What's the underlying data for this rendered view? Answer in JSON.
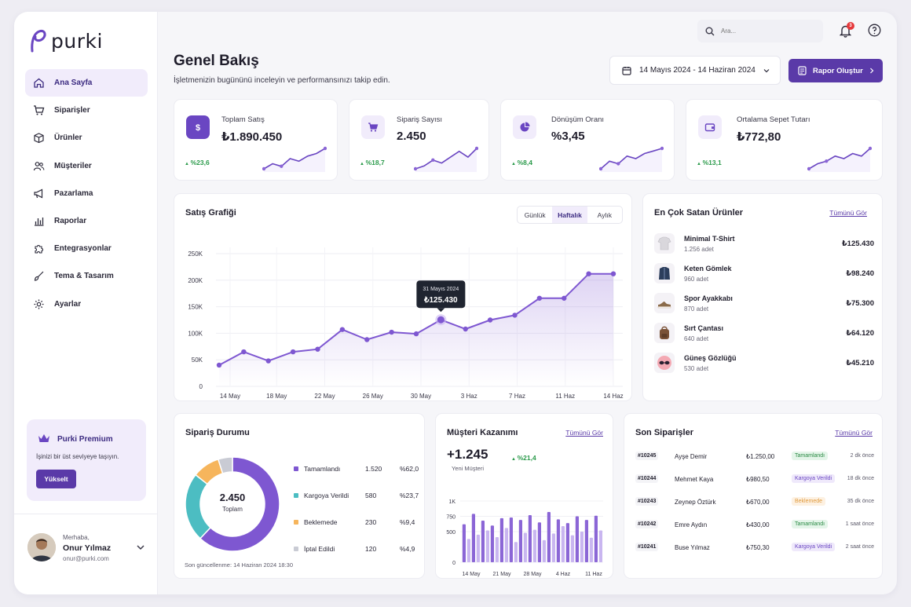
{
  "brand": {
    "name": "purki",
    "accent": "#5a3aa8"
  },
  "sidebar": {
    "items": [
      {
        "label": "Ana Sayfa",
        "icon": "home-icon",
        "active": true
      },
      {
        "label": "Siparişler",
        "icon": "cart-icon"
      },
      {
        "label": "Ürünler",
        "icon": "box-icon"
      },
      {
        "label": "Müşteriler",
        "icon": "users-icon"
      },
      {
        "label": "Pazarlama",
        "icon": "megaphone-icon"
      },
      {
        "label": "Raporlar",
        "icon": "bar-chart-icon"
      },
      {
        "label": "Entegrasyonlar",
        "icon": "puzzle-icon"
      },
      {
        "label": "Tema & Tasarım",
        "icon": "brush-icon"
      },
      {
        "label": "Ayarlar",
        "icon": "gear-icon"
      }
    ],
    "premium": {
      "title": "Purki Premium",
      "text": "İşinizi bir üst seviyeye taşıyın.",
      "button": "Yükselt"
    },
    "user": {
      "greeting": "Merhaba,",
      "name": "Onur Yılmaz",
      "email": "onur@purki.com"
    }
  },
  "header": {
    "search_placeholder": "Ara...",
    "notification_count": "3"
  },
  "page": {
    "title": "Genel Bakış",
    "subtitle": "İşletmenizin bugününü inceleyin ve performansınızı takip edin.",
    "date_range": "14 Mayıs 2024 - 14 Haziran 2024",
    "report_button": "Rapor Oluştur"
  },
  "kpis": [
    {
      "label": "Toplam Satış",
      "value": "₺1.890.450",
      "change": "%23,6",
      "icon": "dollar-icon",
      "spark": [
        2,
        4,
        3,
        6,
        5,
        7,
        8,
        10
      ]
    },
    {
      "label": "Sipariş Sayısı",
      "value": "2.450",
      "change": "%18,7",
      "icon": "cart-icon",
      "spark": [
        2,
        3,
        5,
        4,
        6,
        8,
        6,
        9
      ]
    },
    {
      "label": "Dönüşüm Oranı",
      "value": "%3,45",
      "change": "%8,4",
      "icon": "pie-icon",
      "spark": [
        1,
        4,
        3,
        6,
        5,
        7,
        8,
        9
      ]
    },
    {
      "label": "Ortalama Sepet Tutarı",
      "value": "₺772,80",
      "change": "%13,1",
      "icon": "wallet-icon",
      "spark": [
        1,
        3,
        4,
        6,
        5,
        7,
        6,
        9
      ]
    }
  ],
  "sales_chart": {
    "title": "Satış Grafiği",
    "tabs": [
      "Günlük",
      "Haftalık",
      "Aylık"
    ],
    "active_tab": "Haftalık",
    "tooltip": {
      "date": "31 Mayıs 2024",
      "value": "₺125.430"
    }
  },
  "top_products": {
    "title": "En Çok Satan Ürünler",
    "link": "Tümünü Gör",
    "items": [
      {
        "name": "Minimal T-Shirt",
        "qty": "1.256 adet",
        "value": "₺125.430",
        "icon": "tshirt-icon",
        "color": "#d9d7dc"
      },
      {
        "name": "Keten Gömlek",
        "qty": "960 adet",
        "value": "₺98.240",
        "icon": "shirt-icon",
        "color": "#2c3e5c"
      },
      {
        "name": "Spor Ayakkabı",
        "qty": "870 adet",
        "value": "₺75.300",
        "icon": "shoe-icon",
        "color": "#8a6b4a"
      },
      {
        "name": "Sırt Çantası",
        "qty": "640 adet",
        "value": "₺64.120",
        "icon": "backpack-icon",
        "color": "#7a5236"
      },
      {
        "name": "Güneş Gözlüğü",
        "qty": "530 adet",
        "value": "₺45.210",
        "icon": "sunglasses-icon",
        "color": "#f4a9b3"
      }
    ]
  },
  "order_status": {
    "title": "Sipariş Durumu",
    "total": "2.450",
    "total_label": "Toplam",
    "updated": "Son güncellenme: 14 Haziran 2024 18:30",
    "rows": [
      {
        "label": "Tamamlandı",
        "count": "1.520",
        "pct": "%62,0",
        "value": 62.0,
        "color": "#7e57d1"
      },
      {
        "label": "Kargoya Verildi",
        "count": "580",
        "pct": "%23,7",
        "value": 23.7,
        "color": "#4cbdc2"
      },
      {
        "label": "Beklemede",
        "count": "230",
        "pct": "%9,4",
        "value": 9.4,
        "color": "#f6b55c"
      },
      {
        "label": "İptal Edildi",
        "count": "120",
        "pct": "%4,9",
        "value": 4.9,
        "color": "#c9cbd4"
      }
    ]
  },
  "acquisition": {
    "title": "Müşteri Kazanımı",
    "link": "Tümünü Gör",
    "value": "+1.245",
    "sub": "Yeni Müşteri",
    "change": "%21,4"
  },
  "recent_orders": {
    "title": "Son Siparişler",
    "link": "Tümünü Gör",
    "rows": [
      {
        "id": "#10245",
        "customer": "Ayşe Demir",
        "amount": "₺1.250,00",
        "status": "Tamamlandı",
        "tone": "green",
        "time": "2 dk önce"
      },
      {
        "id": "#10244",
        "customer": "Mehmet Kaya",
        "amount": "₺980,50",
        "status": "Kargoya Verildi",
        "tone": "purple",
        "time": "18 dk önce"
      },
      {
        "id": "#10243",
        "customer": "Zeynep Öztürk",
        "amount": "₺670,00",
        "status": "Beklemede",
        "tone": "orange",
        "time": "35 dk önce"
      },
      {
        "id": "#10242",
        "customer": "Emre Aydın",
        "amount": "₺430,00",
        "status": "Tamamlandı",
        "tone": "green",
        "time": "1 saat önce"
      },
      {
        "id": "#10241",
        "customer": "Buse Yılmaz",
        "amount": "₺750,30",
        "status": "Kargoya Verildi",
        "tone": "purple",
        "time": "2 saat önce"
      }
    ]
  },
  "chart_data": [
    {
      "type": "line",
      "title": "Satış Grafiği",
      "ylim": [
        0,
        250000
      ],
      "yticks": [
        "0",
        "50K",
        "100K",
        "150K",
        "200K",
        "250K"
      ],
      "xticks": [
        "14 May",
        "18 May",
        "22 May",
        "26 May",
        "30 May",
        "3 Haz",
        "7 Haz",
        "11 Haz",
        "14 Haz"
      ],
      "x": [
        "14 May",
        "16 May",
        "18 May",
        "20 May",
        "22 May",
        "24 May",
        "26 May",
        "28 May",
        "30 May",
        "31 May",
        "2 Haz",
        "4 Haz",
        "6 Haz",
        "8 Haz",
        "10 Haz",
        "12 Haz",
        "14 Haz"
      ],
      "values": [
        40000,
        65000,
        48000,
        65000,
        70000,
        107000,
        88000,
        102000,
        99000,
        125430,
        108000,
        125000,
        134000,
        166000,
        166000,
        212000,
        212000
      ],
      "highlight_index": 9,
      "grid": true
    },
    {
      "type": "bar",
      "title": "Müşteri Kazanımı",
      "ylim": [
        0,
        1000
      ],
      "yticks": [
        "0",
        "500",
        "750",
        "1K"
      ],
      "xticks": [
        "14 May",
        "21 May",
        "28 May",
        "4 Haz",
        "11 Haz"
      ],
      "values": [
        620,
        380,
        790,
        450,
        680,
        520,
        600,
        410,
        720,
        560,
        730,
        330,
        690,
        480,
        770,
        530,
        650,
        360,
        820,
        470,
        700,
        590,
        640,
        440,
        750,
        500,
        690,
        400,
        760,
        520
      ]
    }
  ]
}
